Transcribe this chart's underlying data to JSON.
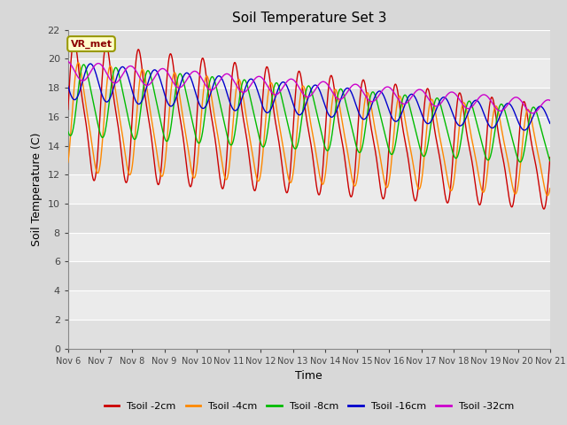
{
  "title": "Soil Temperature Set 3",
  "xlabel": "Time",
  "ylabel": "Soil Temperature (C)",
  "ylim": [
    0,
    22
  ],
  "xlim": [
    0,
    15
  ],
  "x_tick_labels": [
    "Nov 6",
    "Nov 7",
    "Nov 8",
    "Nov 9",
    "Nov 10",
    "Nov 11",
    "Nov 12",
    "Nov 13",
    "Nov 14",
    "Nov 15",
    "Nov 16",
    "Nov 17",
    "Nov 18",
    "Nov 19",
    "Nov 20",
    "Nov 21"
  ],
  "colors": {
    "tsoil_2cm": "#cc0000",
    "tsoil_4cm": "#ff8800",
    "tsoil_8cm": "#00bb00",
    "tsoil_16cm": "#0000cc",
    "tsoil_32cm": "#cc00cc"
  },
  "legend_labels": [
    "Tsoil -2cm",
    "Tsoil -4cm",
    "Tsoil -8cm",
    "Tsoil -16cm",
    "Tsoil -32cm"
  ],
  "vr_met_label": "VR_met",
  "band_colors": [
    "#e0e0e0",
    "#ebebeb"
  ],
  "white_line_color": "#ffffff",
  "figsize": [
    6.4,
    4.8
  ],
  "dpi": 100
}
